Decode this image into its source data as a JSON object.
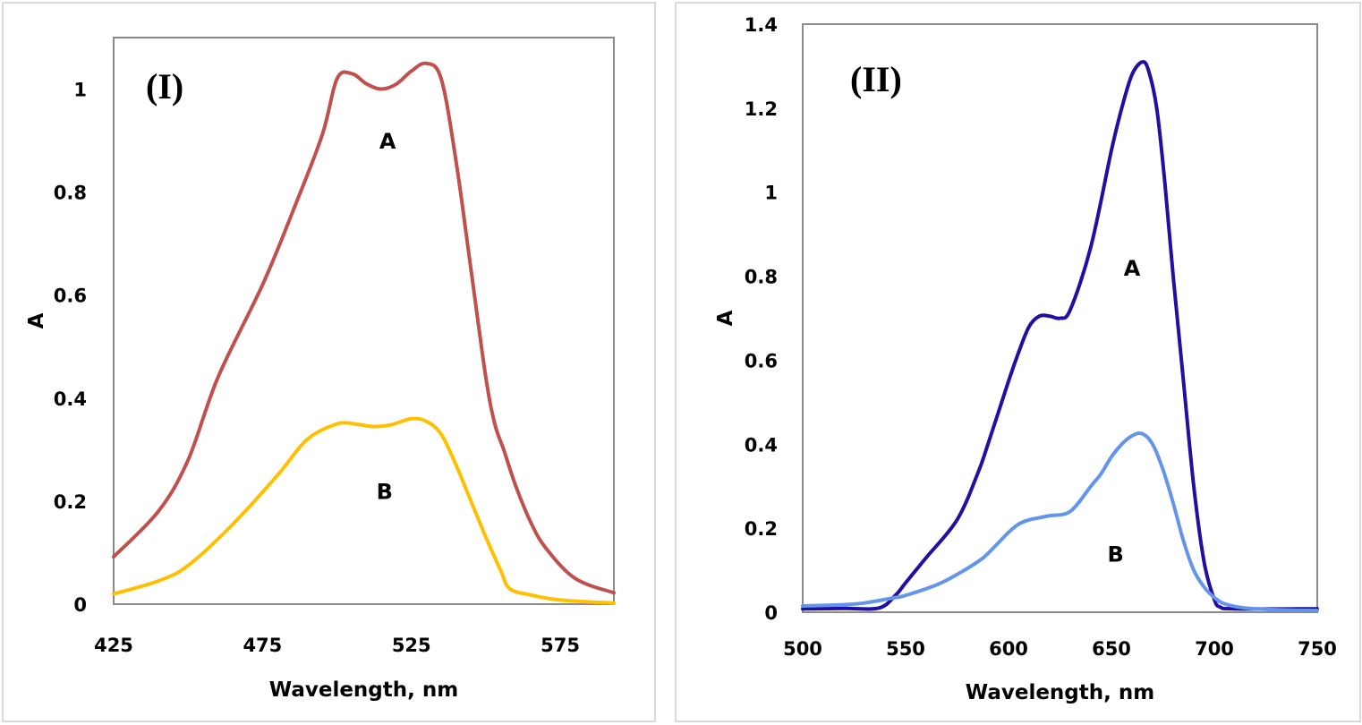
{
  "chart_data": [
    {
      "type": "line",
      "panel_label": "(I)",
      "xlabel": "Wavelength, nm",
      "ylabel": "A",
      "xlim": [
        425,
        593
      ],
      "ylim": [
        0,
        1.1
      ],
      "xticks": [
        425,
        475,
        525,
        575
      ],
      "yticks": [
        0,
        0.2,
        0.4,
        0.6,
        0.8,
        1
      ],
      "ytick_labels": [
        "0",
        "0.2",
        "0.4",
        "0.6",
        "0.8",
        "1"
      ],
      "grid": false,
      "series": [
        {
          "name": "A",
          "color": "#c0504d",
          "label_at": [
            517,
            0.9
          ],
          "x": [
            425,
            440,
            450,
            460,
            475,
            485,
            495,
            500,
            505,
            510,
            515,
            520,
            525,
            530,
            535,
            540,
            545,
            550,
            553,
            556,
            560,
            565,
            570,
            580,
            593
          ],
          "y": [
            0.092,
            0.18,
            0.28,
            0.44,
            0.62,
            0.76,
            0.91,
            1.02,
            1.03,
            1.01,
            1.0,
            1.01,
            1.035,
            1.05,
            1.02,
            0.86,
            0.65,
            0.44,
            0.35,
            0.3,
            0.23,
            0.16,
            0.11,
            0.05,
            0.022
          ]
        },
        {
          "name": "B",
          "color": "#ffc000",
          "label_at": [
            516,
            0.22
          ],
          "x": [
            425,
            440,
            450,
            465,
            480,
            490,
            500,
            506,
            512,
            518,
            525,
            530,
            535,
            540,
            545,
            550,
            555,
            558,
            565,
            575,
            593
          ],
          "y": [
            0.02,
            0.045,
            0.075,
            0.155,
            0.25,
            0.32,
            0.35,
            0.35,
            0.345,
            0.348,
            0.36,
            0.355,
            0.33,
            0.27,
            0.2,
            0.13,
            0.065,
            0.03,
            0.018,
            0.008,
            0.002
          ]
        }
      ]
    },
    {
      "type": "line",
      "panel_label": "(II)",
      "xlabel": "Wavelength, nm",
      "ylabel": "A",
      "xlim": [
        500,
        750
      ],
      "ylim": [
        0,
        1.4
      ],
      "xticks": [
        500,
        550,
        600,
        650,
        700,
        750
      ],
      "yticks": [
        0,
        0.2,
        0.4,
        0.6,
        0.8,
        1,
        1.2,
        1.4
      ],
      "ytick_labels": [
        "0",
        "0.2",
        "0.4",
        "0.6",
        "0.8",
        "1",
        "1.2",
        "1.4"
      ],
      "grid": false,
      "series": [
        {
          "name": "A",
          "color": "#1f0fa3",
          "label_at": [
            660,
            0.82
          ],
          "x": [
            500,
            520,
            537,
            545,
            550,
            560,
            575,
            585,
            590,
            600,
            605,
            610,
            615,
            620,
            625,
            630,
            640,
            650,
            655,
            660,
            665,
            668,
            672,
            676,
            680,
            685,
            690,
            695,
            700,
            703,
            710,
            750
          ],
          "y": [
            0.008,
            0.009,
            0.01,
            0.04,
            0.07,
            0.13,
            0.22,
            0.33,
            0.4,
            0.55,
            0.62,
            0.68,
            0.705,
            0.705,
            0.7,
            0.72,
            0.87,
            1.1,
            1.2,
            1.28,
            1.31,
            1.29,
            1.2,
            1.02,
            0.8,
            0.55,
            0.3,
            0.12,
            0.03,
            0.012,
            0.008,
            0.008
          ]
        },
        {
          "name": "B",
          "color": "#6495ed",
          "label_at": [
            652,
            0.14
          ],
          "x": [
            500,
            520,
            530,
            545,
            550,
            565,
            575,
            585,
            590,
            600,
            605,
            610,
            615,
            620,
            630,
            640,
            645,
            650,
            655,
            660,
            665,
            670,
            675,
            680,
            685,
            690,
            695,
            700,
            705,
            715,
            730,
            750
          ],
          "y": [
            0.015,
            0.018,
            0.022,
            0.035,
            0.04,
            0.065,
            0.09,
            0.12,
            0.14,
            0.19,
            0.21,
            0.22,
            0.225,
            0.23,
            0.24,
            0.3,
            0.33,
            0.37,
            0.4,
            0.42,
            0.425,
            0.4,
            0.34,
            0.26,
            0.17,
            0.1,
            0.06,
            0.035,
            0.02,
            0.01,
            0.006,
            0.004
          ]
        }
      ]
    }
  ]
}
